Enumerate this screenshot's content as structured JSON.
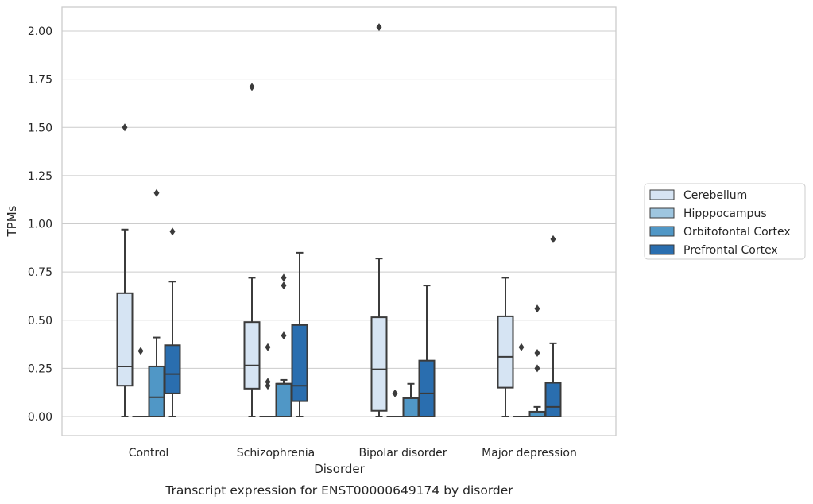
{
  "chart_data": {
    "type": "box",
    "xlabel": "Disorder",
    "ylabel": "TPMs",
    "caption": "Transcript expression for ENST00000649174 by disorder",
    "ylim": [
      -0.1,
      2.12
    ],
    "yticks": [
      "0.00",
      "0.25",
      "0.50",
      "0.75",
      "1.00",
      "1.25",
      "1.50",
      "1.75",
      "2.00"
    ],
    "grid": "horizontal",
    "legend_position": "outside-right",
    "categories": [
      "Control",
      "Schizophrenia",
      "Bipolar disorder",
      "Major depression"
    ],
    "series": [
      {
        "name": "Cerebellum",
        "color": "#d6e4f3",
        "boxes": [
          {
            "q1": 0.16,
            "median": 0.26,
            "q3": 0.64,
            "whisker_low": 0.0,
            "whisker_high": 0.97,
            "outliers": [
              1.5
            ]
          },
          {
            "q1": 0.145,
            "median": 0.265,
            "q3": 0.49,
            "whisker_low": 0.0,
            "whisker_high": 0.72,
            "outliers": [
              1.71
            ]
          },
          {
            "q1": 0.03,
            "median": 0.245,
            "q3": 0.515,
            "whisker_low": 0.0,
            "whisker_high": 0.82,
            "outliers": [
              2.02
            ]
          },
          {
            "q1": 0.15,
            "median": 0.31,
            "q3": 0.52,
            "whisker_low": 0.0,
            "whisker_high": 0.72,
            "outliers": []
          }
        ]
      },
      {
        "name": "Hipppocampus",
        "color": "#9ec6e0",
        "boxes": [
          {
            "q1": 0.0,
            "median": 0.0,
            "q3": 0.0,
            "whisker_low": 0.0,
            "whisker_high": 0.0,
            "outliers": [
              0.34
            ]
          },
          {
            "q1": 0.0,
            "median": 0.0,
            "q3": 0.0,
            "whisker_low": 0.0,
            "whisker_high": 0.0,
            "outliers": [
              0.36,
              0.18,
              0.16
            ]
          },
          {
            "q1": 0.0,
            "median": 0.0,
            "q3": 0.0,
            "whisker_low": 0.0,
            "whisker_high": 0.0,
            "outliers": [
              0.12
            ]
          },
          {
            "q1": 0.0,
            "median": 0.0,
            "q3": 0.0,
            "whisker_low": 0.0,
            "whisker_high": 0.0,
            "outliers": [
              0.36
            ]
          }
        ]
      },
      {
        "name": "Orbitofontal Cortex",
        "color": "#5097c6",
        "boxes": [
          {
            "q1": 0.0,
            "median": 0.1,
            "q3": 0.26,
            "whisker_low": 0.0,
            "whisker_high": 0.41,
            "outliers": [
              1.16
            ]
          },
          {
            "q1": 0.0,
            "median": 0.17,
            "q3": 0.17,
            "whisker_low": 0.0,
            "whisker_high": 0.19,
            "outliers": [
              0.72,
              0.68,
              0.42
            ]
          },
          {
            "q1": 0.0,
            "median": 0.0,
            "q3": 0.095,
            "whisker_low": 0.0,
            "whisker_high": 0.17,
            "outliers": []
          },
          {
            "q1": 0.0,
            "median": 0.0,
            "q3": 0.025,
            "whisker_low": 0.0,
            "whisker_high": 0.05,
            "outliers": [
              0.56,
              0.33,
              0.25
            ]
          }
        ]
      },
      {
        "name": "Prefrontal Cortex",
        "color": "#2a6eaf",
        "boxes": [
          {
            "q1": 0.12,
            "median": 0.22,
            "q3": 0.37,
            "whisker_low": 0.0,
            "whisker_high": 0.7,
            "outliers": [
              0.96
            ]
          },
          {
            "q1": 0.08,
            "median": 0.16,
            "q3": 0.475,
            "whisker_low": 0.0,
            "whisker_high": 0.85,
            "outliers": []
          },
          {
            "q1": 0.0,
            "median": 0.12,
            "q3": 0.29,
            "whisker_low": 0.0,
            "whisker_high": 0.68,
            "outliers": []
          },
          {
            "q1": 0.0,
            "median": 0.05,
            "q3": 0.175,
            "whisker_low": 0.0,
            "whisker_high": 0.38,
            "outliers": [
              0.92
            ]
          }
        ]
      }
    ]
  }
}
